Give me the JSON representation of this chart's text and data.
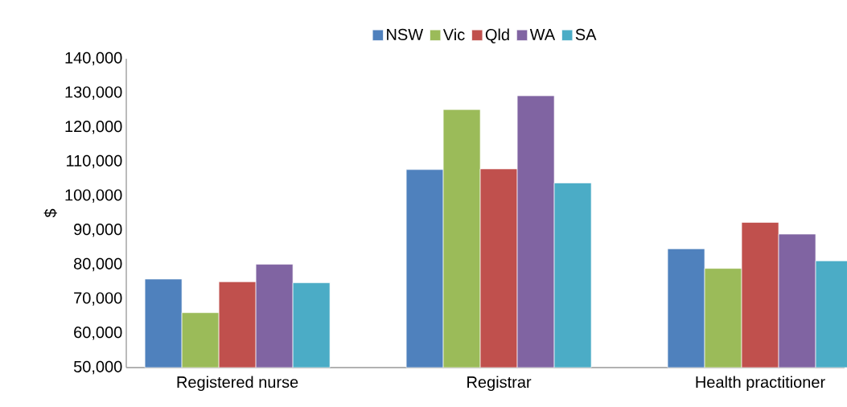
{
  "chart_data": {
    "type": "bar",
    "ylabel": "$",
    "categories": [
      "Registered nurse",
      "Registrar",
      "Health practitioner"
    ],
    "series": [
      {
        "name": "NSW",
        "color": "#4f81bd",
        "values": [
          75800,
          107700,
          84600
        ]
      },
      {
        "name": "Vic",
        "color": "#9bbb59",
        "values": [
          66000,
          125200,
          78900
        ]
      },
      {
        "name": "Qld",
        "color": "#c0504d",
        "values": [
          75000,
          107900,
          92300
        ]
      },
      {
        "name": "WA",
        "color": "#8064a2",
        "values": [
          80100,
          129200,
          88900
        ]
      },
      {
        "name": "SA",
        "color": "#4bacc6",
        "values": [
          74700,
          103800,
          81100
        ]
      }
    ],
    "ylim": [
      50000,
      140000
    ],
    "yticks": [
      {
        "value": 50000,
        "label": "50,000"
      },
      {
        "value": 60000,
        "label": "60,000"
      },
      {
        "value": 70000,
        "label": "70,000"
      },
      {
        "value": 80000,
        "label": "80,000"
      },
      {
        "value": 90000,
        "label": "90,000"
      },
      {
        "value": 100000,
        "label": "100,000"
      },
      {
        "value": 110000,
        "label": "110,000"
      },
      {
        "value": 120000,
        "label": "120,000"
      },
      {
        "value": 130000,
        "label": "130,000"
      },
      {
        "value": 140000,
        "label": "140,000"
      }
    ],
    "grid": false,
    "legend": "top"
  }
}
